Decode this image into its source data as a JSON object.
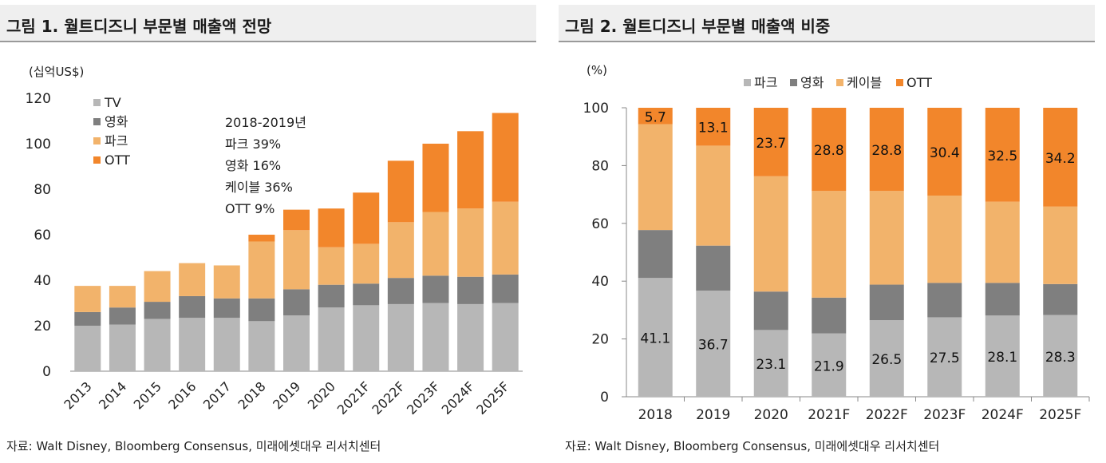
{
  "colors": {
    "tv": "#b7b7b7",
    "movie": "#7f7f7f",
    "park": "#f2b36b",
    "ott": "#f2862b",
    "cable": "#f2b36b"
  },
  "left": {
    "title": "그림 1. 월트디즈니 부문별 매출액 전망",
    "source": "자료: Walt Disney, Bloomberg Consensus, 미래에셋대우 리서치센터",
    "annotation": [
      "2018-2019년",
      "파크 39%",
      "영화 16%",
      "케이블 36%",
      "OTT 9%"
    ]
  },
  "right": {
    "title": "그림 2. 월트디즈니 부문별 매출액 비중",
    "source": "자료: Walt Disney, Bloomberg Consensus, 미래에셋대우 리서치센터"
  },
  "chart_data": [
    {
      "type": "bar",
      "stacked": true,
      "title": "그림 1. 월트디즈니 부문별 매출액 전망",
      "ylabel": "(십억US$)",
      "ylim": [
        0,
        120
      ],
      "yticks": [
        0,
        20,
        40,
        60,
        80,
        100,
        120
      ],
      "legend_position": "top-left",
      "categories": [
        "2013",
        "2014",
        "2015",
        "2016",
        "2017",
        "2018",
        "2019",
        "2020",
        "2021F",
        "2022F",
        "2023F",
        "2024F",
        "2025F"
      ],
      "series": [
        {
          "name": "TV",
          "color": "#b7b7b7",
          "values": [
            20,
            20.5,
            23,
            23.5,
            23.5,
            22,
            24.5,
            28,
            29,
            29.5,
            30,
            29.5,
            30
          ]
        },
        {
          "name": "영화",
          "color": "#7f7f7f",
          "values": [
            6,
            7.5,
            7.5,
            9.5,
            8.5,
            10,
            11.5,
            10,
            9.5,
            11.5,
            12,
            12,
            12.5
          ]
        },
        {
          "name": "파크",
          "color": "#f2b36b",
          "values": [
            11.5,
            9.5,
            13.5,
            14.5,
            14.5,
            25,
            26,
            16.5,
            17.5,
            24.5,
            28,
            30,
            32
          ]
        },
        {
          "name": "OTT",
          "color": "#f2862b",
          "values": [
            0,
            0,
            0,
            0,
            0,
            3,
            9,
            17,
            22.5,
            27,
            30,
            34,
            39
          ]
        }
      ]
    },
    {
      "type": "bar",
      "stacked": true,
      "percent": true,
      "title": "그림 2. 월트디즈니 부문별 매출액 비중",
      "ylabel": "(%)",
      "ylim": [
        0,
        100
      ],
      "yticks": [
        0,
        20,
        40,
        60,
        80,
        100
      ],
      "legend_position": "top",
      "categories": [
        "2018",
        "2019",
        "2020",
        "2021F",
        "2022F",
        "2023F",
        "2024F",
        "2025F"
      ],
      "series": [
        {
          "name": "파크",
          "color": "#b7b7b7",
          "values": [
            41.1,
            36.7,
            23.1,
            21.9,
            26.5,
            27.5,
            28.1,
            28.3
          ],
          "labels": true
        },
        {
          "name": "영화",
          "color": "#7f7f7f",
          "values": [
            16.6,
            15.6,
            13.3,
            12.4,
            12.3,
            11.9,
            11.3,
            10.7
          ],
          "labels": false
        },
        {
          "name": "케이블",
          "color": "#f2b36b",
          "values": [
            36.6,
            34.6,
            39.9,
            36.9,
            32.4,
            30.2,
            28.1,
            26.8
          ],
          "labels": false
        },
        {
          "name": "OTT",
          "color": "#f2862b",
          "values": [
            5.7,
            13.1,
            23.7,
            28.8,
            28.8,
            30.4,
            32.5,
            34.2
          ],
          "labels": true
        }
      ]
    }
  ]
}
